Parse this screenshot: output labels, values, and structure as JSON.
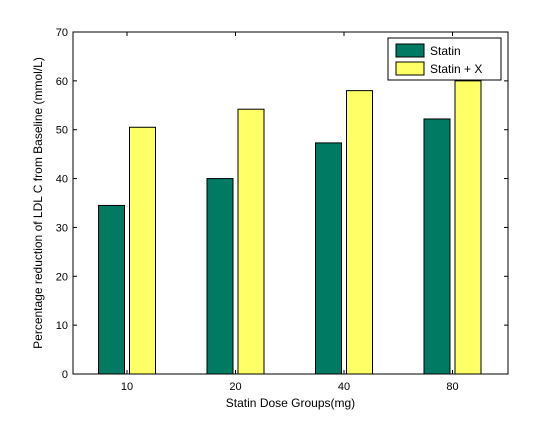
{
  "chart_data": {
    "type": "bar",
    "title": "",
    "xlabel": "Statin Dose Groups(mg)",
    "ylabel": "Percentage reduction of LDL C from Baseline (mmol/L)",
    "categories": [
      "10",
      "20",
      "40",
      "80"
    ],
    "series": [
      {
        "name": "Statin",
        "color": "#007a62",
        "values": [
          34.5,
          40.0,
          47.3,
          52.2
        ]
      },
      {
        "name": "Statin + X",
        "color": "#ffff66",
        "values": [
          50.5,
          54.2,
          58.0,
          60.0
        ]
      }
    ],
    "ylim": [
      0,
      70
    ],
    "yticks": [
      "0",
      "10",
      "20",
      "30",
      "40",
      "50",
      "60",
      "70"
    ],
    "grid": false,
    "legend_position": "top-right"
  }
}
